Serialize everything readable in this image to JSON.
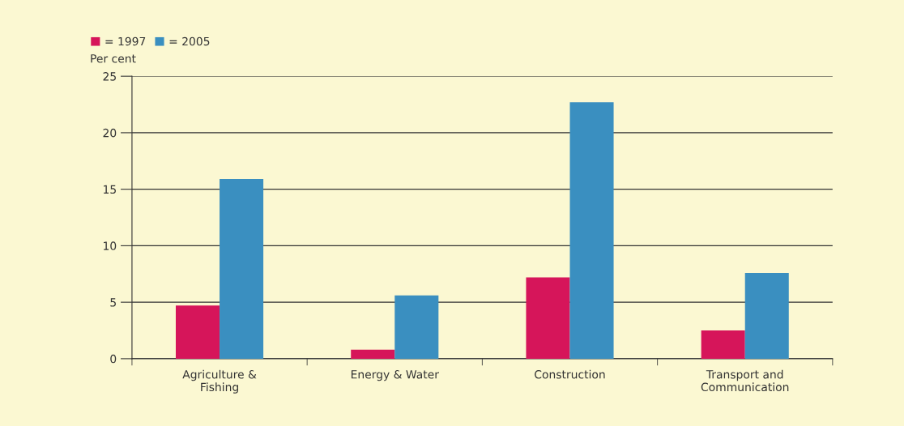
{
  "chart_data": {
    "type": "bar",
    "ylabel": "Per cent",
    "categories": [
      "Agriculture &\nFishing",
      "Energy & Water",
      "Construction",
      "Transport and\nCommunication"
    ],
    "series": [
      {
        "name": "= 1997",
        "color": "#d6155a",
        "values": [
          4.7,
          0.8,
          7.2,
          2.5
        ]
      },
      {
        "name": "= 2005",
        "color": "#3a8fc0",
        "values": [
          15.9,
          5.6,
          22.7,
          7.6
        ]
      }
    ],
    "ylim": [
      0,
      25
    ],
    "yticks": [
      0,
      5,
      10,
      15,
      20,
      25
    ],
    "grid": "y",
    "legend": "top left"
  }
}
